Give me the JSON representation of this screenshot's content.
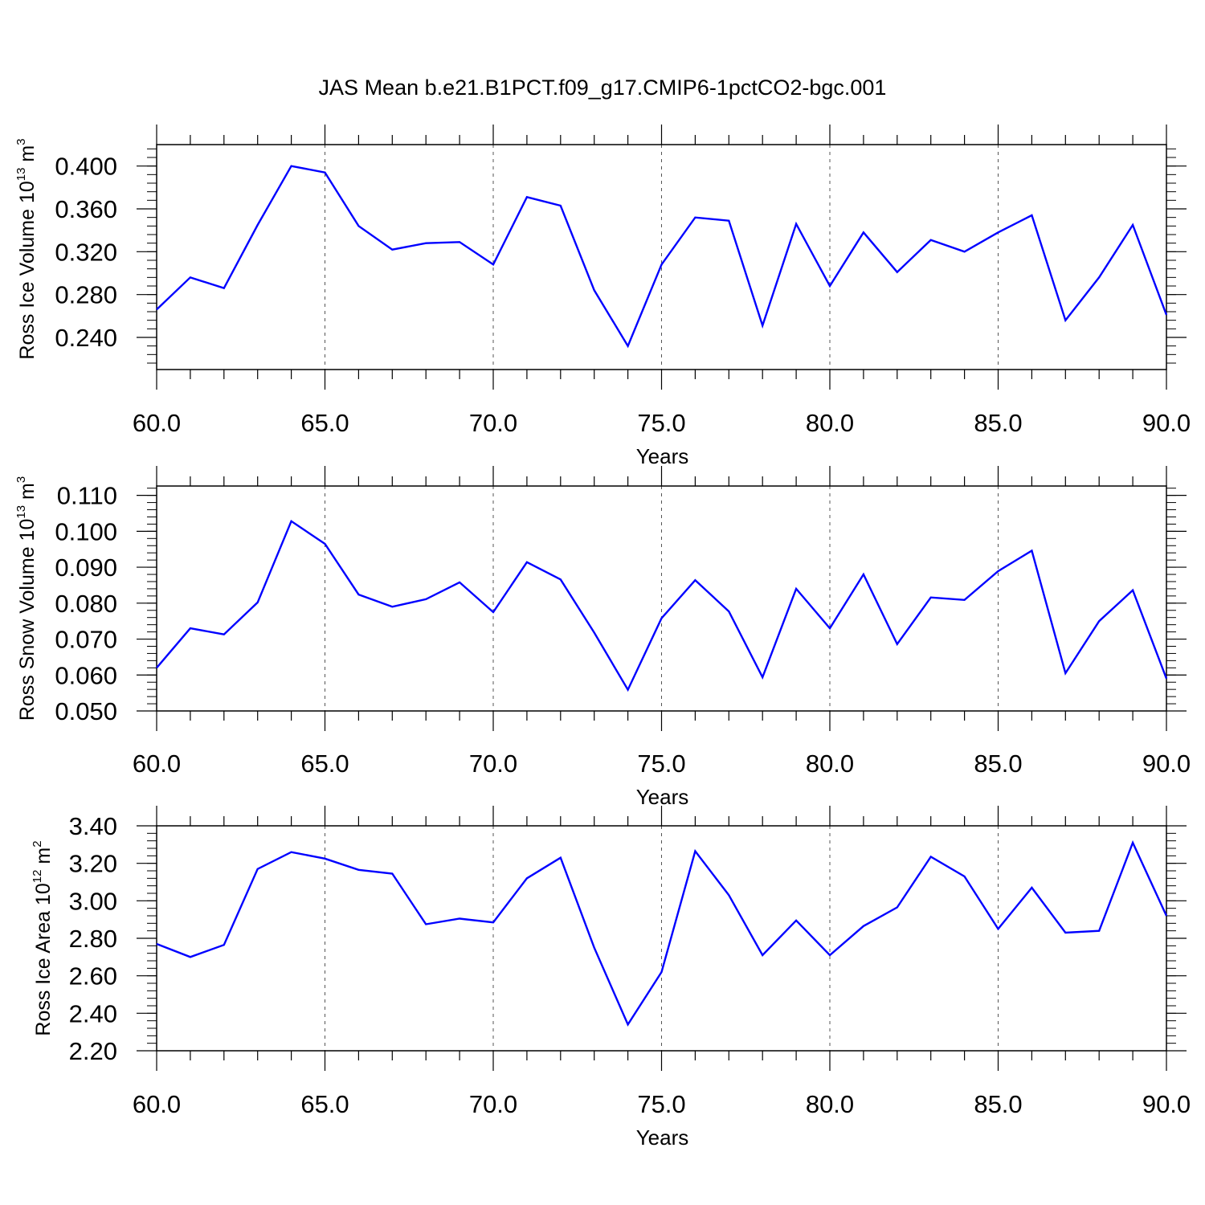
{
  "title": "JAS Mean b.e21.B1PCT.f09_g17.CMIP6-1pctCO2-bgc.001",
  "colors": {
    "series": "#0000ff",
    "axis": "#000000",
    "grid": "#555555"
  },
  "chart_data": [
    {
      "type": "line",
      "ylabel": {
        "main": "Ross Ice Volume 10",
        "exp": "13",
        "unit": " m",
        "unit_exp": "3"
      },
      "xlabel": "Years",
      "xlim": [
        60,
        90
      ],
      "ylim": [
        0.21,
        0.42
      ],
      "x_ticks": [
        "60.0",
        "65.0",
        "70.0",
        "75.0",
        "80.0",
        "85.0",
        "90.0"
      ],
      "y_ticks": [
        "0.240",
        "0.280",
        "0.320",
        "0.360",
        "0.400"
      ],
      "grid": "vertical dashed at major x ticks",
      "x": [
        60,
        61,
        62,
        63,
        64,
        65,
        66,
        67,
        68,
        69,
        70,
        71,
        72,
        73,
        74,
        75,
        76,
        77,
        78,
        79,
        80,
        81,
        82,
        83,
        84,
        85,
        86,
        87,
        88,
        89,
        90
      ],
      "values": [
        0.266,
        0.296,
        0.286,
        0.345,
        0.4,
        0.394,
        0.344,
        0.322,
        0.328,
        0.329,
        0.308,
        0.371,
        0.363,
        0.284,
        0.232,
        0.308,
        0.352,
        0.349,
        0.251,
        0.346,
        0.288,
        0.338,
        0.301,
        0.331,
        0.32,
        0.338,
        0.354,
        0.256,
        0.296,
        0.345,
        0.261
      ]
    },
    {
      "type": "line",
      "ylabel": {
        "main": "Ross Snow Volume 10",
        "exp": "13",
        "unit": " m",
        "unit_exp": "3"
      },
      "xlabel": "Years",
      "xlim": [
        60,
        90
      ],
      "ylim": [
        0.05,
        0.1126
      ],
      "x_ticks": [
        "60.0",
        "65.0",
        "70.0",
        "75.0",
        "80.0",
        "85.0",
        "90.0"
      ],
      "y_ticks": [
        "0.050",
        "0.060",
        "0.070",
        "0.080",
        "0.090",
        "0.100",
        "0.110"
      ],
      "grid": "vertical dashed at major x ticks",
      "x": [
        60,
        61,
        62,
        63,
        64,
        65,
        66,
        67,
        68,
        69,
        70,
        71,
        72,
        73,
        74,
        75,
        76,
        77,
        78,
        79,
        80,
        81,
        82,
        83,
        84,
        85,
        86,
        87,
        88,
        89,
        90
      ],
      "values": [
        0.062,
        0.073,
        0.0713,
        0.0802,
        0.1028,
        0.0965,
        0.0824,
        0.079,
        0.0811,
        0.0858,
        0.0775,
        0.0914,
        0.0866,
        0.0718,
        0.0559,
        0.0758,
        0.0864,
        0.0777,
        0.0594,
        0.084,
        0.073,
        0.088,
        0.0686,
        0.0816,
        0.0809,
        0.0889,
        0.0946,
        0.0605,
        0.075,
        0.0836,
        0.059
      ]
    },
    {
      "type": "line",
      "ylabel": {
        "main": "Ross Ice Area 10",
        "exp": "12",
        "unit": " m",
        "unit_exp": "2"
      },
      "xlabel": "Years",
      "xlim": [
        60,
        90
      ],
      "ylim": [
        2.2,
        3.4
      ],
      "x_ticks": [
        "60.0",
        "65.0",
        "70.0",
        "75.0",
        "80.0",
        "85.0",
        "90.0"
      ],
      "y_ticks": [
        "2.20",
        "2.40",
        "2.60",
        "2.80",
        "3.00",
        "3.20",
        "3.40"
      ],
      "grid": "vertical dashed at major x ticks",
      "x": [
        60,
        61,
        62,
        63,
        64,
        65,
        66,
        67,
        68,
        69,
        70,
        71,
        72,
        73,
        74,
        75,
        76,
        77,
        78,
        79,
        80,
        81,
        82,
        83,
        84,
        85,
        86,
        87,
        88,
        89,
        90
      ],
      "values": [
        2.77,
        2.7,
        2.765,
        3.17,
        3.26,
        3.225,
        3.165,
        3.145,
        2.875,
        2.905,
        2.885,
        3.12,
        3.23,
        2.75,
        2.34,
        2.62,
        3.265,
        3.03,
        2.71,
        2.895,
        2.71,
        2.865,
        2.965,
        3.235,
        3.13,
        2.85,
        3.07,
        2.83,
        2.84,
        3.31,
        2.92
      ]
    }
  ]
}
